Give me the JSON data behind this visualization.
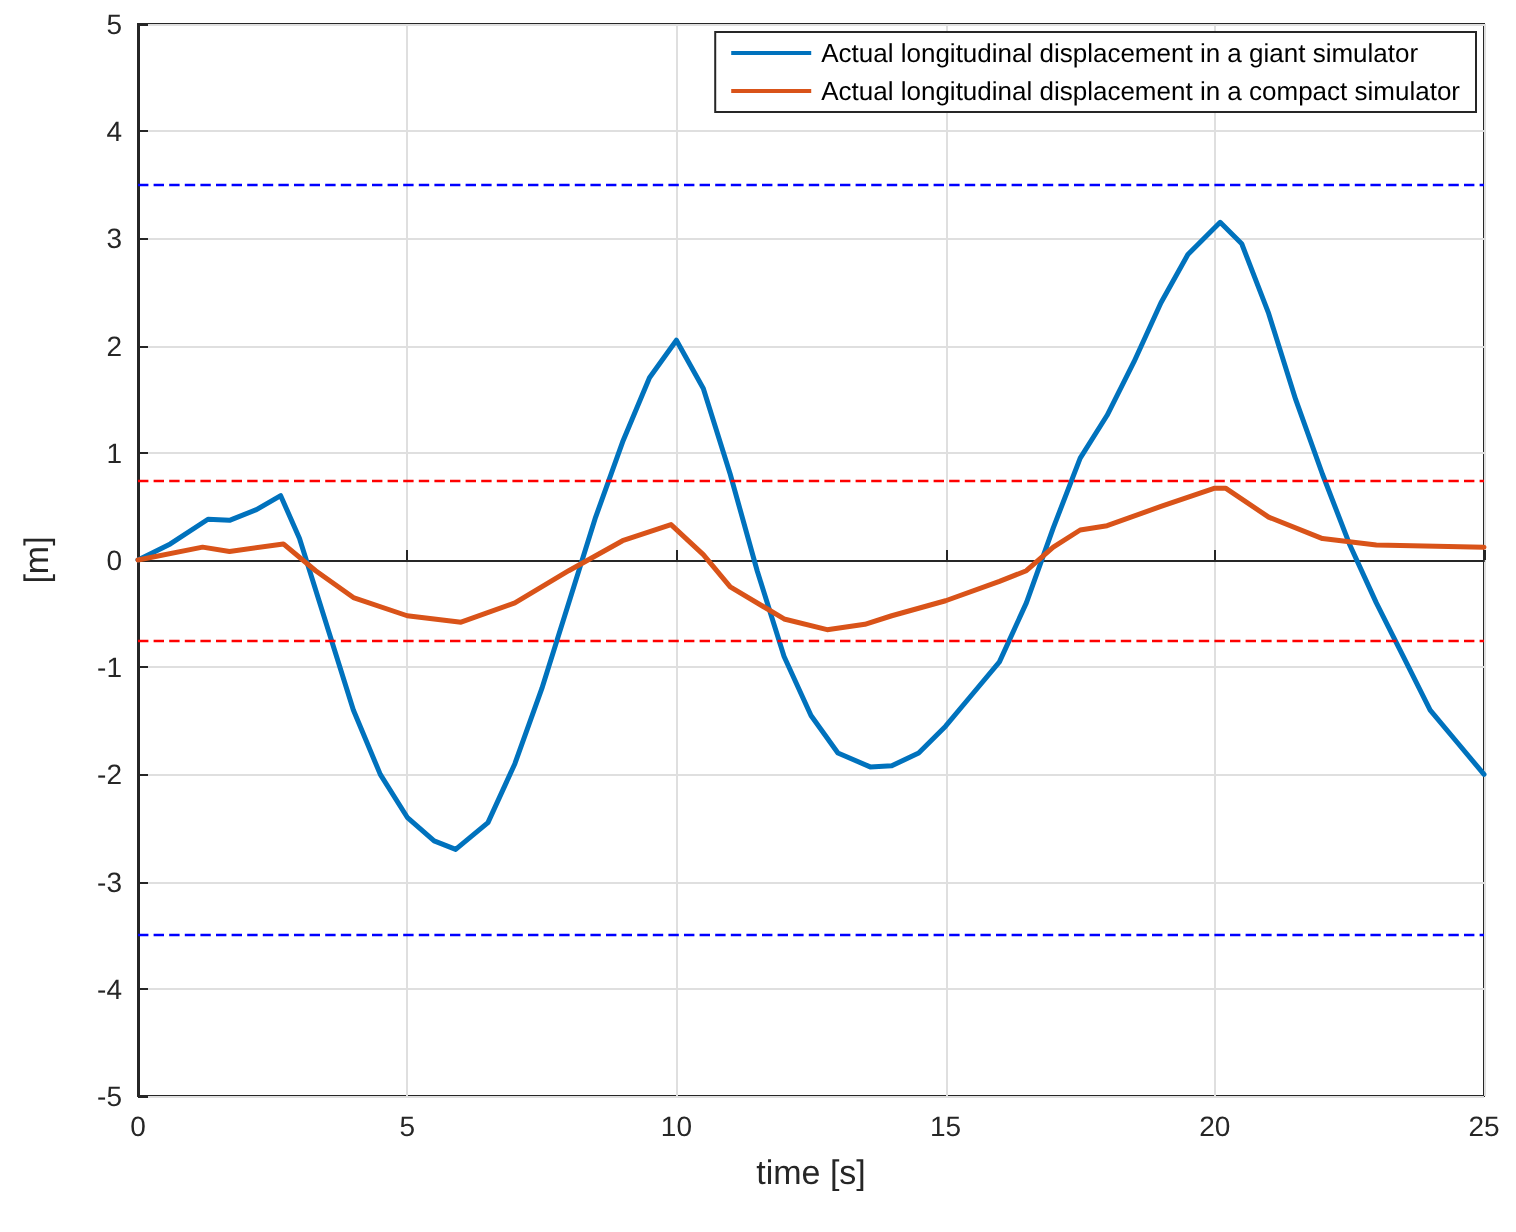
{
  "chart_data": {
    "type": "line",
    "xlabel": "time [s]",
    "ylabel": "[m]",
    "xlim": [
      0,
      25
    ],
    "xticks": [
      0,
      5,
      10,
      15,
      20,
      25
    ],
    "ylim": [
      -5,
      5
    ],
    "yticks": [
      -5,
      -4,
      -3,
      -2,
      -1,
      0,
      1,
      2,
      3,
      4,
      5
    ],
    "grid": true,
    "legend": "top right",
    "line_style": "solid",
    "marker": "none",
    "series": [
      {
        "name": "Actual longitudinal displacement in a giant simulator",
        "color": "#0072bd",
        "x": [
          0,
          0.6,
          1.3,
          1.7,
          2.2,
          2.65,
          3,
          3.5,
          4,
          4.5,
          5,
          5.5,
          5.9,
          6.5,
          7,
          7.5,
          8,
          8.5,
          9,
          9.5,
          10,
          10.5,
          11,
          11.5,
          12,
          12.5,
          13,
          13.6,
          14,
          14.5,
          15,
          15.5,
          16,
          16.5,
          17,
          17.5,
          18,
          18.5,
          19,
          19.5,
          20.1,
          20.5,
          21,
          21.5,
          22,
          22.5,
          23,
          23.5,
          24,
          24.5,
          25
        ],
        "values": [
          0,
          0.15,
          0.38,
          0.37,
          0.47,
          0.6,
          0.2,
          -0.6,
          -1.4,
          -2.0,
          -2.4,
          -2.62,
          -2.7,
          -2.45,
          -1.9,
          -1.2,
          -0.4,
          0.4,
          1.1,
          1.7,
          2.05,
          1.6,
          0.8,
          -0.1,
          -0.9,
          -1.45,
          -1.8,
          -1.93,
          -1.92,
          -1.8,
          -1.55,
          -1.25,
          -0.95,
          -0.4,
          0.3,
          0.95,
          1.35,
          1.85,
          2.4,
          2.85,
          3.15,
          2.95,
          2.3,
          1.5,
          0.8,
          0.15,
          -0.4,
          -0.9,
          -1.4,
          -1.7,
          -2.0
        ]
      },
      {
        "name": "Actual longitudinal displacement in a compact simulator",
        "color": "#d95319",
        "x": [
          0,
          1.2,
          1.7,
          2.7,
          3.3,
          4,
          5,
          6,
          7,
          8,
          9,
          9.9,
          10.5,
          11,
          12,
          12.8,
          13.5,
          14,
          15,
          16,
          16.5,
          17,
          17.5,
          18,
          19,
          20,
          20.2,
          21,
          22,
          23,
          25
        ],
        "values": [
          0,
          0.12,
          0.08,
          0.15,
          -0.1,
          -0.35,
          -0.52,
          -0.58,
          -0.4,
          -0.1,
          0.18,
          0.33,
          0.05,
          -0.25,
          -0.55,
          -0.65,
          -0.6,
          -0.52,
          -0.38,
          -0.2,
          -0.1,
          0.12,
          0.28,
          0.32,
          0.5,
          0.67,
          0.67,
          0.4,
          0.2,
          0.14,
          0.12
        ]
      }
    ],
    "ref_lines": [
      {
        "axis": "y",
        "value": 3.5,
        "color": "#0000ff",
        "line_style": "dashed"
      },
      {
        "axis": "y",
        "value": 0.75,
        "color": "#ff0000",
        "line_style": "dashed"
      },
      {
        "axis": "y",
        "value": -0.75,
        "color": "#ff0000",
        "line_style": "dashed"
      },
      {
        "axis": "y",
        "value": -3.5,
        "color": "#0000ff",
        "line_style": "dashed"
      }
    ]
  }
}
